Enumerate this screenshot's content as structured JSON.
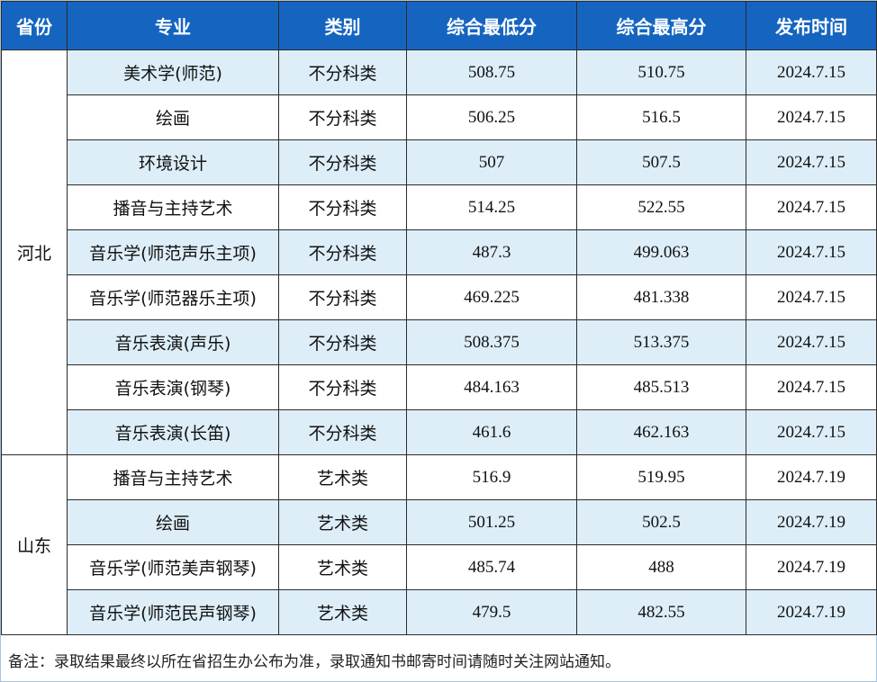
{
  "table": {
    "headers": [
      "省份",
      "专业",
      "类别",
      "综合最低分",
      "综合最高分",
      "发布时间"
    ],
    "groups": [
      {
        "province": "河北",
        "rows": [
          {
            "major": "美术学(师范)",
            "category": "不分科类",
            "min": "508.75",
            "max": "510.75",
            "date": "2024.7.15"
          },
          {
            "major": "绘画",
            "category": "不分科类",
            "min": "506.25",
            "max": "516.5",
            "date": "2024.7.15"
          },
          {
            "major": "环境设计",
            "category": "不分科类",
            "min": "507",
            "max": "507.5",
            "date": "2024.7.15"
          },
          {
            "major": "播音与主持艺术",
            "category": "不分科类",
            "min": "514.25",
            "max": "522.55",
            "date": "2024.7.15"
          },
          {
            "major": "音乐学(师范声乐主项)",
            "category": "不分科类",
            "min": "487.3",
            "max": "499.063",
            "date": "2024.7.15"
          },
          {
            "major": "音乐学(师范器乐主项)",
            "category": "不分科类",
            "min": "469.225",
            "max": "481.338",
            "date": "2024.7.15"
          },
          {
            "major": "音乐表演(声乐)",
            "category": "不分科类",
            "min": "508.375",
            "max": "513.375",
            "date": "2024.7.15"
          },
          {
            "major": "音乐表演(钢琴)",
            "category": "不分科类",
            "min": "484.163",
            "max": "485.513",
            "date": "2024.7.15"
          },
          {
            "major": "音乐表演(长笛)",
            "category": "不分科类",
            "min": "461.6",
            "max": "462.163",
            "date": "2024.7.15"
          }
        ]
      },
      {
        "province": "山东",
        "rows": [
          {
            "major": "播音与主持艺术",
            "category": "艺术类",
            "min": "516.9",
            "max": "519.95",
            "date": "2024.7.19"
          },
          {
            "major": "绘画",
            "category": "艺术类",
            "min": "501.25",
            "max": "502.5",
            "date": "2024.7.19"
          },
          {
            "major": "音乐学(师范美声钢琴)",
            "category": "艺术类",
            "min": "485.74",
            "max": "488",
            "date": "2024.7.19"
          },
          {
            "major": "音乐学(师范民声钢琴)",
            "category": "艺术类",
            "min": "479.5",
            "max": "482.55",
            "date": "2024.7.19"
          }
        ]
      }
    ]
  },
  "note": "备注：录取结果最终以所在省招生办公布为准，录取通知书邮寄时间请随时关注网站通知。",
  "colors": {
    "header_bg": "#1565c0",
    "stripe_bg": "#ddeef9",
    "border": "#2b2b2b"
  }
}
